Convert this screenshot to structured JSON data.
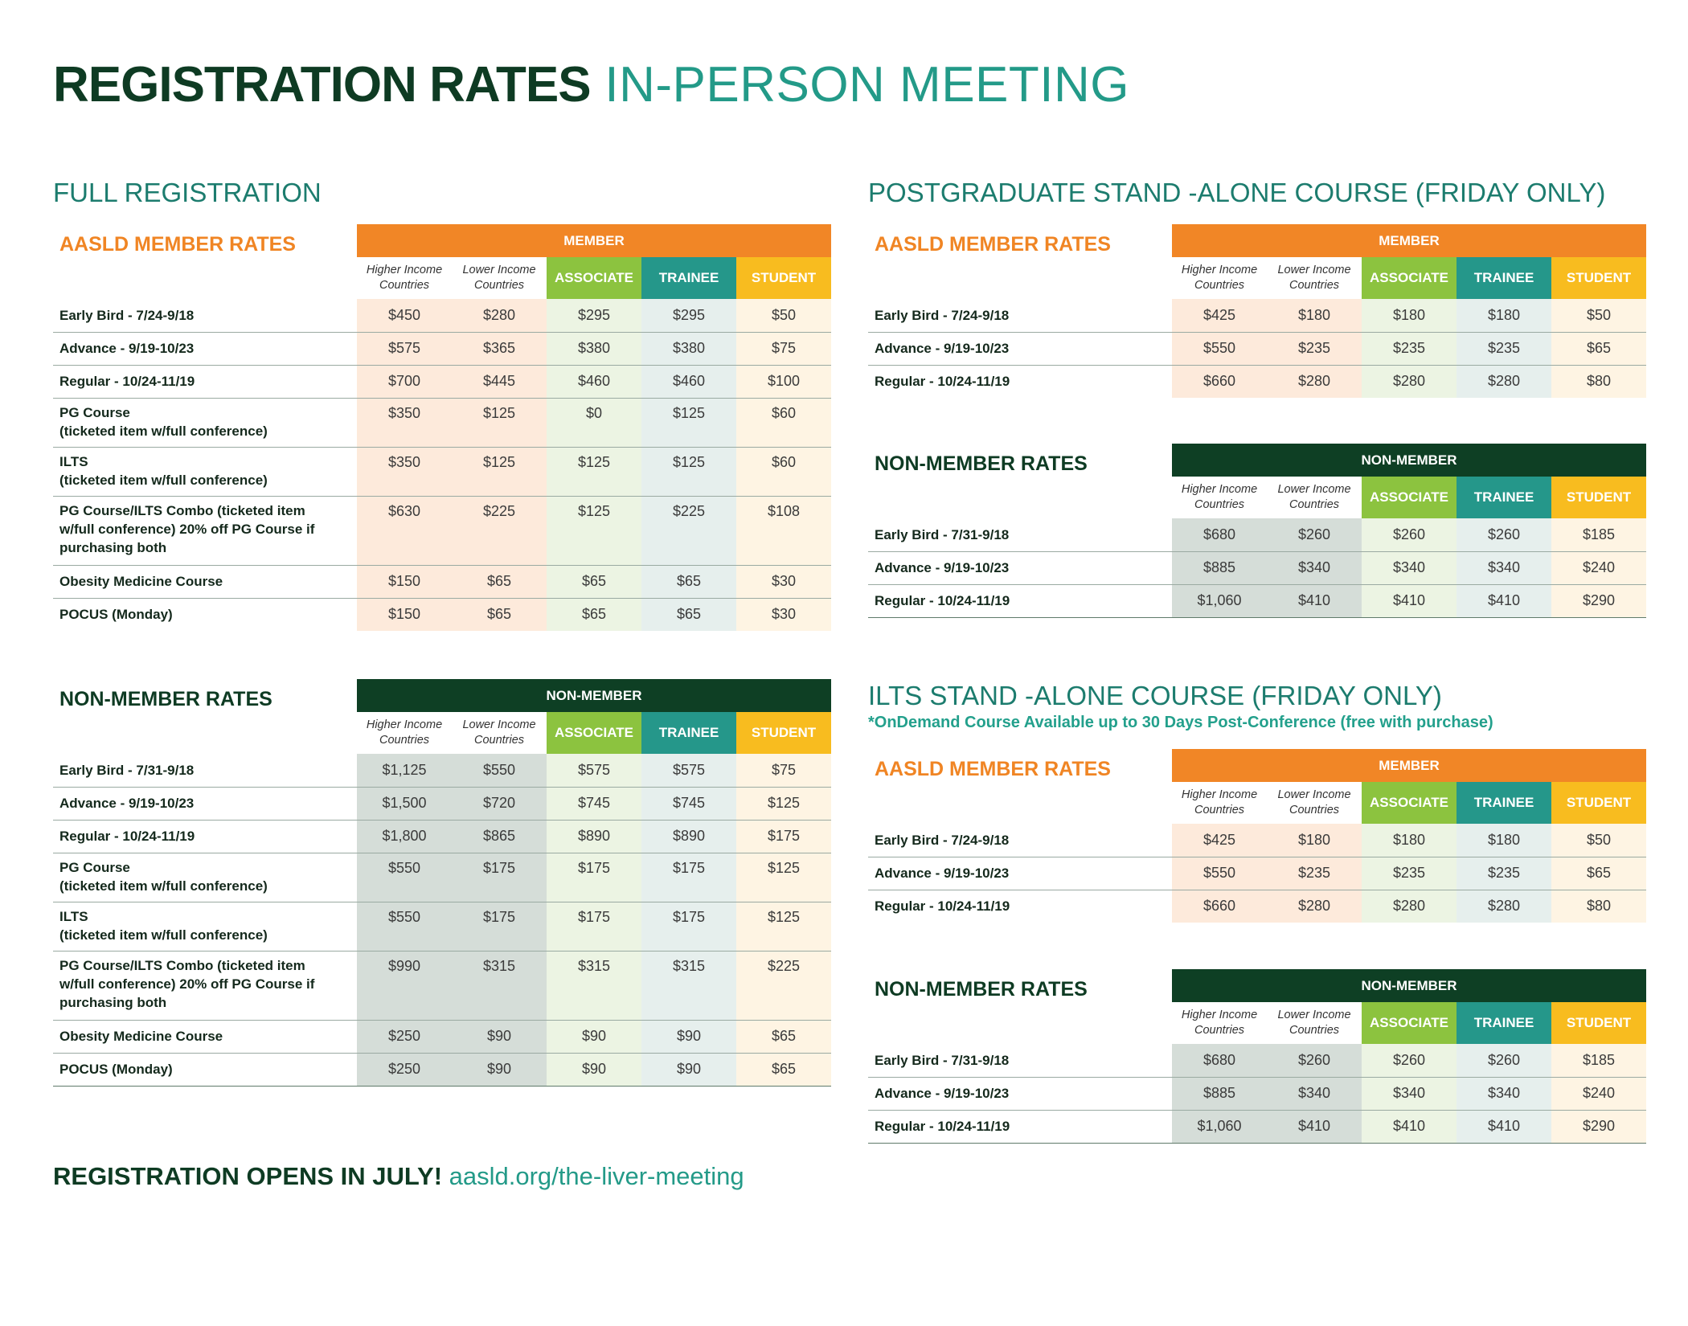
{
  "title": {
    "bold": "REGISTRATION RATES",
    "light": "IN-PERSON MEETING"
  },
  "columns": {
    "higher": "Higher Income Countries",
    "lower": "Lower Income Countries",
    "associate": "ASSOCIATE",
    "trainee": "TRAINEE",
    "student": "STUDENT"
  },
  "full": {
    "title": "FULL REGISTRATION",
    "member": {
      "label": "AASLD MEMBER RATES",
      "band": "MEMBER",
      "rows": [
        {
          "label": "Early Bird - 7/24-9/18",
          "values": [
            "$450",
            "$280",
            "$295",
            "$295",
            "$50"
          ]
        },
        {
          "label": "Advance - 9/19-10/23",
          "values": [
            "$575",
            "$365",
            "$380",
            "$380",
            "$75"
          ]
        },
        {
          "label": "Regular - 10/24-11/19",
          "values": [
            "$700",
            "$445",
            "$460",
            "$460",
            "$100"
          ]
        },
        {
          "label_l1": "PG Course",
          "label_l2": "(ticketed item w/full conference)",
          "values": [
            "$350",
            "$125",
            "$0",
            "$125",
            "$60"
          ]
        },
        {
          "label_l1": "ILTS",
          "label_l2": "(ticketed item w/full conference)",
          "values": [
            "$350",
            "$125",
            "$125",
            "$125",
            "$60"
          ]
        },
        {
          "label_l1": "PG Course/ILTS Combo (ticketed item",
          "label_l2": "w/full conference) 20% off PG Course if",
          "label_l3": "purchasing both",
          "values": [
            "$630",
            "$225",
            "$125",
            "$225",
            "$108"
          ]
        },
        {
          "label": "Obesity Medicine Course",
          "values": [
            "$150",
            "$65",
            "$65",
            "$65",
            "$30"
          ]
        },
        {
          "label": "POCUS (Monday)",
          "values": [
            "$150",
            "$65",
            "$65",
            "$65",
            "$30"
          ]
        }
      ]
    },
    "nonmember": {
      "label": "NON-MEMBER RATES",
      "band": "NON-MEMBER",
      "rows": [
        {
          "label": "Early Bird - 7/31-9/18",
          "values": [
            "$1,125",
            "$550",
            "$575",
            "$575",
            "$75"
          ]
        },
        {
          "label": "Advance - 9/19-10/23",
          "values": [
            "$1,500",
            "$720",
            "$745",
            "$745",
            "$125"
          ]
        },
        {
          "label": "Regular - 10/24-11/19",
          "values": [
            "$1,800",
            "$865",
            "$890",
            "$890",
            "$175"
          ]
        },
        {
          "label_l1": "PG Course",
          "label_l2": "(ticketed item w/full conference)",
          "values": [
            "$550",
            "$175",
            "$175",
            "$175",
            "$125"
          ]
        },
        {
          "label_l1": "ILTS",
          "label_l2": "(ticketed item w/full conference)",
          "values": [
            "$550",
            "$175",
            "$175",
            "$175",
            "$125"
          ]
        },
        {
          "label_l1": "PG Course/ILTS Combo (ticketed item",
          "label_l2": "w/full conference) 20% off PG Course if",
          "label_l3": "purchasing both",
          "values": [
            "$990",
            "$315",
            "$315",
            "$315",
            "$225"
          ]
        },
        {
          "label": "Obesity Medicine Course",
          "values": [
            "$250",
            "$90",
            "$90",
            "$90",
            "$65"
          ]
        },
        {
          "label": "POCUS (Monday)",
          "values": [
            "$250",
            "$90",
            "$90",
            "$90",
            "$65"
          ]
        }
      ]
    }
  },
  "pg": {
    "title": "POSTGRADUATE STAND -ALONE COURSE (FRIDAY ONLY)",
    "member": {
      "label": "AASLD MEMBER RATES",
      "band": "MEMBER",
      "rows": [
        {
          "label": "Early Bird - 7/24-9/18",
          "values": [
            "$425",
            "$180",
            "$180",
            "$180",
            "$50"
          ]
        },
        {
          "label": "Advance - 9/19-10/23",
          "values": [
            "$550",
            "$235",
            "$235",
            "$235",
            "$65"
          ]
        },
        {
          "label": "Regular - 10/24-11/19",
          "values": [
            "$660",
            "$280",
            "$280",
            "$280",
            "$80"
          ]
        }
      ]
    },
    "nonmember": {
      "label": "NON-MEMBER RATES",
      "band": "NON-MEMBER",
      "rows": [
        {
          "label": "Early Bird - 7/31-9/18",
          "values": [
            "$680",
            "$260",
            "$260",
            "$260",
            "$185"
          ]
        },
        {
          "label": "Advance - 9/19-10/23",
          "values": [
            "$885",
            "$340",
            "$340",
            "$340",
            "$240"
          ]
        },
        {
          "label": "Regular - 10/24-11/19",
          "values": [
            "$1,060",
            "$410",
            "$410",
            "$410",
            "$290"
          ]
        }
      ]
    }
  },
  "ilts": {
    "title": "ILTS STAND -ALONE COURSE (FRIDAY ONLY)",
    "note": "*OnDemand Course Available up to 30 Days Post-Conference (free with purchase)",
    "member": {
      "label": "AASLD MEMBER RATES",
      "band": "MEMBER",
      "rows": [
        {
          "label": "Early Bird - 7/24-9/18",
          "values": [
            "$425",
            "$180",
            "$180",
            "$180",
            "$50"
          ]
        },
        {
          "label": "Advance - 9/19-10/23",
          "values": [
            "$550",
            "$235",
            "$235",
            "$235",
            "$65"
          ]
        },
        {
          "label": "Regular - 10/24-11/19",
          "values": [
            "$660",
            "$280",
            "$280",
            "$280",
            "$80"
          ]
        }
      ]
    },
    "nonmember": {
      "label": "NON-MEMBER RATES",
      "band": "NON-MEMBER",
      "rows": [
        {
          "label": "Early Bird - 7/31-9/18",
          "values": [
            "$680",
            "$260",
            "$260",
            "$260",
            "$185"
          ]
        },
        {
          "label": "Advance - 9/19-10/23",
          "values": [
            "$885",
            "$340",
            "$340",
            "$340",
            "$240"
          ]
        },
        {
          "label": "Regular - 10/24-11/19",
          "values": [
            "$1,060",
            "$410",
            "$410",
            "$410",
            "$290"
          ]
        }
      ]
    }
  },
  "footer": {
    "bold": "REGISTRATION OPENS IN JULY!",
    "link": "aasld.org/the-liver-meeting"
  },
  "colors": {
    "dark_green": "#0e3b23",
    "teal": "#239a88",
    "orange": "#f18626",
    "associate_green": "#8cc33f",
    "trainee_teal": "#25978a",
    "student_yellow": "#f8bc1f"
  }
}
